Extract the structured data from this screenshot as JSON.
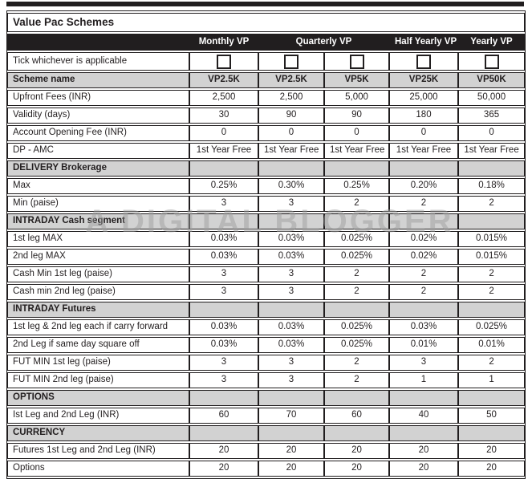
{
  "title": "Value Pac Schemes",
  "watermark": "A DIGITAL BLOGGER",
  "colors": {
    "header_bg": "#211e1f",
    "header_text": "#ffffff",
    "section_bg": "#d2d2d2",
    "border": "#211e1f"
  },
  "tick_row_label": "Tick whichever is applicable",
  "columns": [
    {
      "label": "Monthly VP",
      "span": 1
    },
    {
      "label": "Quarterly VP",
      "span": 2
    },
    {
      "label": "Half Yearly VP",
      "span": 1
    },
    {
      "label": "Yearly VP",
      "span": 1
    }
  ],
  "checkbox_columns": [
    "monthly-vp",
    "quarterly-vp-1",
    "quarterly-vp-2",
    "half-yearly-vp",
    "yearly-vp"
  ],
  "rows": [
    {
      "type": "scheme",
      "label": "Scheme name",
      "values": [
        "VP2.5K",
        "VP2.5K",
        "VP5K",
        "VP25K",
        "VP50K"
      ]
    },
    {
      "type": "data",
      "label": "Upfront Fees (INR)",
      "values": [
        "2,500",
        "2,500",
        "5,000",
        "25,000",
        "50,000"
      ]
    },
    {
      "type": "data",
      "label": "Validity (days)",
      "values": [
        "30",
        "90",
        "90",
        "180",
        "365"
      ]
    },
    {
      "type": "data",
      "label": "Account Opening Fee (INR)",
      "values": [
        "0",
        "0",
        "0",
        "0",
        "0"
      ]
    },
    {
      "type": "data",
      "label": "DP - AMC",
      "values": [
        "1st Year Free",
        "1st Year Free",
        "1st Year Free",
        "1st Year Free",
        "1st Year Free"
      ]
    },
    {
      "type": "section",
      "label": "DELIVERY Brokerage",
      "values": [
        "",
        "",
        "",
        "",
        ""
      ]
    },
    {
      "type": "data",
      "label": "Max",
      "values": [
        "0.25%",
        "0.30%",
        "0.25%",
        "0.20%",
        "0.18%"
      ]
    },
    {
      "type": "data",
      "label": "Min (paise)",
      "values": [
        "3",
        "3",
        "2",
        "2",
        "2"
      ]
    },
    {
      "type": "section",
      "label": "INTRADAY Cash segment",
      "values": [
        "",
        "",
        "",
        "",
        ""
      ]
    },
    {
      "type": "data",
      "label": "1st leg MAX",
      "values": [
        "0.03%",
        "0.03%",
        "0.025%",
        "0.02%",
        "0.015%"
      ]
    },
    {
      "type": "data",
      "label": "2nd leg MAX",
      "values": [
        "0.03%",
        "0.03%",
        "0.025%",
        "0.02%",
        "0.015%"
      ]
    },
    {
      "type": "data",
      "label": "Cash Min 1st leg (paise)",
      "values": [
        "3",
        "3",
        "2",
        "2",
        "2"
      ]
    },
    {
      "type": "data",
      "label": "Cash min 2nd leg (paise)",
      "values": [
        "3",
        "3",
        "2",
        "2",
        "2"
      ]
    },
    {
      "type": "section",
      "label": "INTRADAY Futures",
      "values": [
        "",
        "",
        "",
        "",
        ""
      ]
    },
    {
      "type": "data",
      "label": "1st leg & 2nd leg each if carry forward",
      "values": [
        "0.03%",
        "0.03%",
        "0.025%",
        "0.03%",
        "0.025%"
      ]
    },
    {
      "type": "data",
      "label": "2nd Leg if same day square off",
      "values": [
        "0.03%",
        "0.03%",
        "0.025%",
        "0.01%",
        "0.01%"
      ]
    },
    {
      "type": "data",
      "label": "FUT MIN 1st leg (paise)",
      "values": [
        "3",
        "3",
        "2",
        "3",
        "2"
      ]
    },
    {
      "type": "data",
      "label": "FUT MIN 2nd leg (paise)",
      "values": [
        "3",
        "3",
        "2",
        "1",
        "1"
      ]
    },
    {
      "type": "section",
      "label": "OPTIONS",
      "values": [
        "",
        "",
        "",
        "",
        ""
      ]
    },
    {
      "type": "data",
      "label": "Ist Leg and 2nd Leg (INR)",
      "values": [
        "60",
        "70",
        "60",
        "40",
        "50"
      ]
    },
    {
      "type": "section",
      "label": "CURRENCY",
      "values": [
        "",
        "",
        "",
        "",
        ""
      ]
    },
    {
      "type": "data",
      "label": "Futures 1st Leg and 2nd Leg (INR)",
      "values": [
        "20",
        "20",
        "20",
        "20",
        "20"
      ]
    },
    {
      "type": "data",
      "label": "Options",
      "values": [
        "20",
        "20",
        "20",
        "20",
        "20"
      ]
    }
  ]
}
